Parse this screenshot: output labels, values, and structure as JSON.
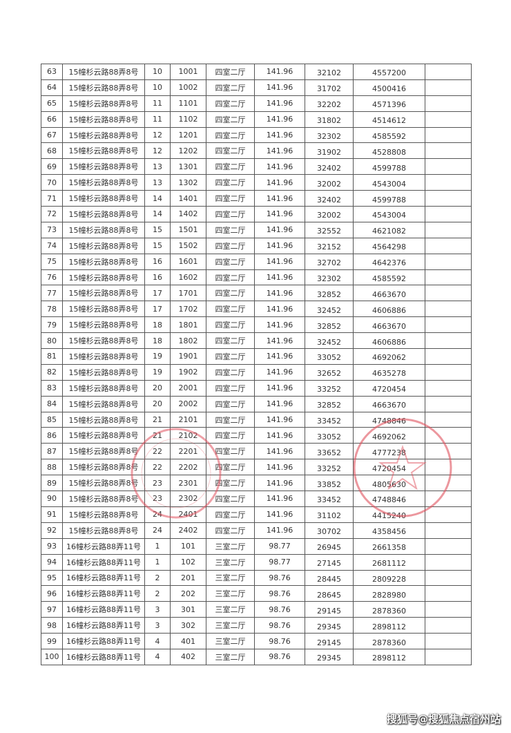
{
  "table": {
    "rows": [
      [
        "63",
        "15幢杉云路88弄8号",
        "10",
        "1001",
        "四室二厅",
        "141.96",
        "32102",
        "4557200",
        ""
      ],
      [
        "64",
        "15幢杉云路88弄8号",
        "10",
        "1002",
        "四室二厅",
        "141.96",
        "31702",
        "4500416",
        ""
      ],
      [
        "65",
        "15幢杉云路88弄8号",
        "11",
        "1101",
        "四室二厅",
        "141.96",
        "32202",
        "4571396",
        ""
      ],
      [
        "66",
        "15幢杉云路88弄8号",
        "11",
        "1102",
        "四室二厅",
        "141.96",
        "31802",
        "4514612",
        ""
      ],
      [
        "67",
        "15幢杉云路88弄8号",
        "12",
        "1201",
        "四室二厅",
        "141.96",
        "32302",
        "4585592",
        ""
      ],
      [
        "68",
        "15幢杉云路88弄8号",
        "12",
        "1202",
        "四室二厅",
        "141.96",
        "31902",
        "4528808",
        ""
      ],
      [
        "69",
        "15幢杉云路88弄8号",
        "13",
        "1301",
        "四室二厅",
        "141.96",
        "32402",
        "4599788",
        ""
      ],
      [
        "70",
        "15幢杉云路88弄8号",
        "13",
        "1302",
        "四室二厅",
        "141.96",
        "32002",
        "4543004",
        ""
      ],
      [
        "71",
        "15幢杉云路88弄8号",
        "14",
        "1401",
        "四室二厅",
        "141.96",
        "32402",
        "4599788",
        ""
      ],
      [
        "72",
        "15幢杉云路88弄8号",
        "14",
        "1402",
        "四室二厅",
        "141.96",
        "32002",
        "4543004",
        ""
      ],
      [
        "73",
        "15幢杉云路88弄8号",
        "15",
        "1501",
        "四室二厅",
        "141.96",
        "32552",
        "4621082",
        ""
      ],
      [
        "74",
        "15幢杉云路88弄8号",
        "15",
        "1502",
        "四室二厅",
        "141.96",
        "32152",
        "4564298",
        ""
      ],
      [
        "75",
        "15幢杉云路88弄8号",
        "16",
        "1601",
        "四室二厅",
        "141.96",
        "32702",
        "4642376",
        ""
      ],
      [
        "76",
        "15幢杉云路88弄8号",
        "16",
        "1602",
        "四室二厅",
        "141.96",
        "32302",
        "4585592",
        ""
      ],
      [
        "77",
        "15幢杉云路88弄8号",
        "17",
        "1701",
        "四室二厅",
        "141.96",
        "32852",
        "4663670",
        ""
      ],
      [
        "78",
        "15幢杉云路88弄8号",
        "17",
        "1702",
        "四室二厅",
        "141.96",
        "32452",
        "4606886",
        ""
      ],
      [
        "79",
        "15幢杉云路88弄8号",
        "18",
        "1801",
        "四室二厅",
        "141.96",
        "32852",
        "4663670",
        ""
      ],
      [
        "80",
        "15幢杉云路88弄8号",
        "18",
        "1802",
        "四室二厅",
        "141.96",
        "32452",
        "4606886",
        ""
      ],
      [
        "81",
        "15幢杉云路88弄8号",
        "19",
        "1901",
        "四室二厅",
        "141.96",
        "33052",
        "4692062",
        ""
      ],
      [
        "82",
        "15幢杉云路88弄8号",
        "19",
        "1902",
        "四室二厅",
        "141.96",
        "32652",
        "4635278",
        ""
      ],
      [
        "83",
        "15幢杉云路88弄8号",
        "20",
        "2001",
        "四室二厅",
        "141.96",
        "33252",
        "4720454",
        ""
      ],
      [
        "84",
        "15幢杉云路88弄8号",
        "20",
        "2002",
        "四室二厅",
        "141.96",
        "32852",
        "4663670",
        ""
      ],
      [
        "85",
        "15幢杉云路88弄8号",
        "21",
        "2101",
        "四室二厅",
        "141.96",
        "33452",
        "4748846",
        ""
      ],
      [
        "86",
        "15幢杉云路88弄8号",
        "21",
        "2102",
        "四室二厅",
        "141.96",
        "33052",
        "4692062",
        ""
      ],
      [
        "87",
        "15幢杉云路88弄8号",
        "22",
        "2201",
        "四室二厅",
        "141.96",
        "33652",
        "4777238",
        ""
      ],
      [
        "88",
        "15幢杉云路88弄8号",
        "22",
        "2202",
        "四室二厅",
        "141.96",
        "33252",
        "4720454",
        ""
      ],
      [
        "89",
        "15幢杉云路88弄8号",
        "23",
        "2301",
        "四室二厅",
        "141.96",
        "33852",
        "4805630",
        ""
      ],
      [
        "90",
        "15幢杉云路88弄8号",
        "23",
        "2302",
        "四室二厅",
        "141.96",
        "33452",
        "4748846",
        ""
      ],
      [
        "91",
        "15幢杉云路88弄8号",
        "24",
        "2401",
        "四室二厅",
        "141.96",
        "31102",
        "4415240",
        ""
      ],
      [
        "92",
        "15幢杉云路88弄8号",
        "24",
        "2402",
        "四室二厅",
        "141.96",
        "30702",
        "4358456",
        ""
      ],
      [
        "93",
        "16幢杉云路88弄11号",
        "1",
        "101",
        "三室二厅",
        "98.77",
        "26945",
        "2661358",
        ""
      ],
      [
        "94",
        "16幢杉云路88弄11号",
        "1",
        "102",
        "三室二厅",
        "98.77",
        "27145",
        "2681112",
        ""
      ],
      [
        "95",
        "16幢杉云路88弄11号",
        "2",
        "201",
        "三室二厅",
        "98.76",
        "28445",
        "2809228",
        ""
      ],
      [
        "96",
        "16幢杉云路88弄11号",
        "2",
        "202",
        "三室二厅",
        "98.76",
        "28645",
        "2828980",
        ""
      ],
      [
        "97",
        "16幢杉云路88弄11号",
        "3",
        "301",
        "三室二厅",
        "98.76",
        "29145",
        "2878360",
        ""
      ],
      [
        "98",
        "16幢杉云路88弄11号",
        "3",
        "302",
        "三室二厅",
        "98.76",
        "29345",
        "2898112",
        ""
      ],
      [
        "99",
        "16幢杉云路88弄11号",
        "4",
        "401",
        "三室二厅",
        "98.76",
        "29145",
        "2878360",
        ""
      ],
      [
        "100",
        "16幢杉云路88弄11号",
        "4",
        "402",
        "三室二厅",
        "98.76",
        "29345",
        "2898112",
        ""
      ]
    ]
  },
  "stamp_color": "#e0525e",
  "watermark": "搜狐号@搜狐焦点宿州站"
}
